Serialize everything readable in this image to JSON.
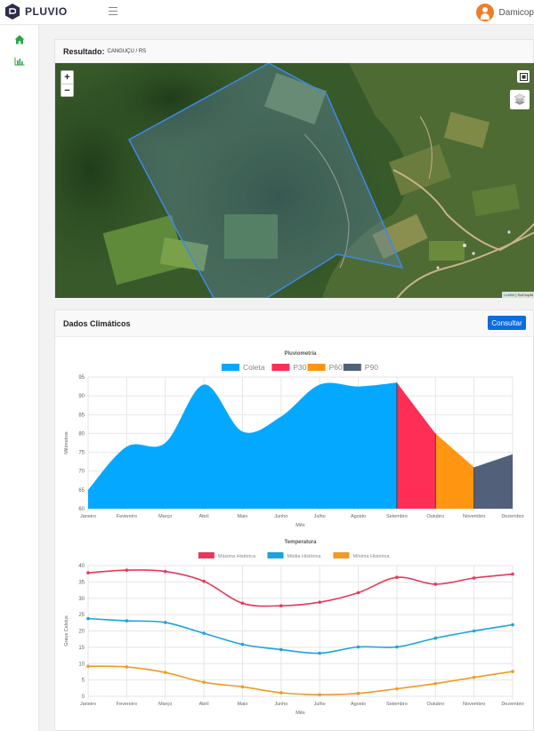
{
  "app": {
    "name": "PLUVIO"
  },
  "user": {
    "name": "Damicop"
  },
  "sidebar": {
    "items": [
      {
        "icon": "home-icon"
      },
      {
        "icon": "bar-chart-icon"
      }
    ]
  },
  "result": {
    "label": "Resultado:",
    "location": "CANGUÇU / RS"
  },
  "map": {
    "zoom_in": "+",
    "zoom_out": "−",
    "attribution_link": "Leaflet",
    "attribution_text": "| SciCropM"
  },
  "climate": {
    "title": "Dados Climáticos",
    "button_label": "Consultar"
  },
  "colors": {
    "coleta": "#05a8ff",
    "p30": "#ff2e57",
    "p60": "#ff9511",
    "p90": "#52607a",
    "maxima": "#e8385a",
    "media": "#1aa3e0",
    "minima": "#f19a22",
    "accent": "#0d6ce0"
  },
  "chart_data": [
    {
      "type": "area",
      "title": "Pluviometria",
      "xlabel": "Mês",
      "ylabel": "Milímetros",
      "ylim": [
        60,
        95
      ],
      "yticks": [
        60,
        65,
        70,
        75,
        80,
        85,
        90,
        95
      ],
      "categories": [
        "Janeiro",
        "Fevereiro",
        "Março",
        "Abril",
        "Maio",
        "Junho",
        "Julho",
        "Agosto",
        "Setembro",
        "Outubro",
        "Novembro",
        "Dezembro"
      ],
      "legend_position": "top",
      "grid": true,
      "series": [
        {
          "name": "Coleta",
          "values": [
            65,
            76.5,
            77.5,
            93,
            80.5,
            84.5,
            93,
            92.5,
            93.5,
            null,
            null,
            null
          ]
        },
        {
          "name": "P30",
          "values": [
            null,
            null,
            null,
            null,
            null,
            null,
            null,
            null,
            93.5,
            80,
            null,
            null
          ]
        },
        {
          "name": "P60",
          "values": [
            null,
            null,
            null,
            null,
            null,
            null,
            null,
            null,
            null,
            80,
            71,
            null
          ]
        },
        {
          "name": "P90",
          "values": [
            null,
            null,
            null,
            null,
            null,
            null,
            null,
            null,
            null,
            null,
            71,
            74.5
          ]
        }
      ]
    },
    {
      "type": "line",
      "title": "Temperatura",
      "xlabel": "Mês",
      "ylabel": "Graus Celsius",
      "ylim": [
        0,
        40
      ],
      "yticks": [
        0,
        5,
        10,
        15,
        20,
        25,
        30,
        35,
        40
      ],
      "categories": [
        "Janeiro",
        "Fevereiro",
        "Março",
        "Abril",
        "Maio",
        "Junho",
        "Julho",
        "Agosto",
        "Setembro",
        "Outubro",
        "Novembro",
        "Dezembro"
      ],
      "legend_position": "top",
      "grid": true,
      "series": [
        {
          "name": "Máxima Histórica",
          "values": [
            37.8,
            38.6,
            38.2,
            35.2,
            28.5,
            27.7,
            28.8,
            31.7,
            36.4,
            34.3,
            36.2,
            37.4
          ]
        },
        {
          "name": "Média Histórica",
          "values": [
            23.8,
            23.1,
            22.6,
            19.3,
            15.9,
            14.3,
            13.2,
            15.1,
            15.1,
            17.8,
            20.0,
            21.9
          ]
        },
        {
          "name": "Mínima Histórica",
          "values": [
            9.2,
            9.0,
            7.3,
            4.3,
            2.9,
            1.1,
            0.5,
            0.9,
            2.3,
            3.9,
            5.8,
            7.6
          ]
        }
      ]
    }
  ]
}
